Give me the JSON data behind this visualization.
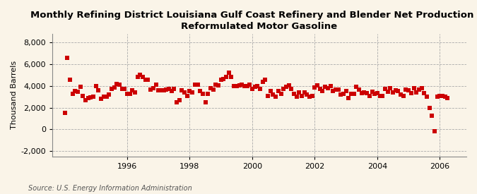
{
  "title": "Monthly Refining District Louisiana Gulf Coast Refinery and Blender Net Production of\nReformulated Motor Gasoline",
  "ylabel": "Thousand Barrels",
  "source": "Source: U.S. Energy Information Administration",
  "background_color": "#faf4e8",
  "plot_bg_color": "#faf4e8",
  "marker_color": "#cc0000",
  "marker": "s",
  "marker_size": 4,
  "ylim": [
    -2500,
    8800
  ],
  "yticks": [
    -2000,
    0,
    2000,
    4000,
    6000,
    8000
  ],
  "grid_color": "#aaaaaa",
  "title_fontsize": 9.5,
  "ylabel_fontsize": 8,
  "tick_fontsize": 8,
  "xlim": [
    1993.6,
    2006.85
  ],
  "xtick_positions": [
    1996,
    1998,
    2000,
    2002,
    2004,
    2006
  ],
  "values": [
    1500,
    6600,
    4600,
    3250,
    3550,
    3450,
    3900,
    3100,
    2700,
    2850,
    2950,
    3000,
    4000,
    3600,
    2800,
    3000,
    3000,
    3200,
    3700,
    3850,
    4200,
    4100,
    3700,
    3750,
    3300,
    3300,
    3600,
    3400,
    4800,
    5000,
    4800,
    4600,
    4550,
    3650,
    3800,
    4100,
    3600,
    3600,
    3600,
    3650,
    3750,
    3550,
    3700,
    2500,
    2700,
    3600,
    3400,
    3100,
    3500,
    3400,
    4100,
    4100,
    3500,
    3300,
    2500,
    3300,
    3800,
    3650,
    4100,
    4050,
    4600,
    4650,
    4850,
    5200,
    4800,
    4000,
    4000,
    4050,
    4100,
    4000,
    4000,
    4100,
    3700,
    3900,
    4000,
    3700,
    4400,
    4600,
    3100,
    3500,
    3200,
    3000,
    3500,
    3250,
    3700,
    3950,
    4050,
    3750,
    3300,
    3000,
    3400,
    3100,
    3400,
    3200,
    3000,
    3050,
    3850,
    4050,
    3700,
    3500,
    3900,
    3800,
    4000,
    3500,
    3650,
    3650,
    3200,
    3250,
    3500,
    2900,
    3300,
    3300,
    3900,
    3650,
    3350,
    3400,
    3350,
    3050,
    3450,
    3300,
    3350,
    3100,
    3050,
    3700,
    3450,
    3800,
    3400,
    3600,
    3550,
    3200,
    3100,
    3650,
    3600,
    3350,
    3800,
    3400,
    3650,
    3800,
    3350,
    3000,
    2000,
    1250,
    -200,
    3000,
    3050,
    3100,
    3000,
    2900
  ],
  "start_year": 1994,
  "start_month": 1
}
